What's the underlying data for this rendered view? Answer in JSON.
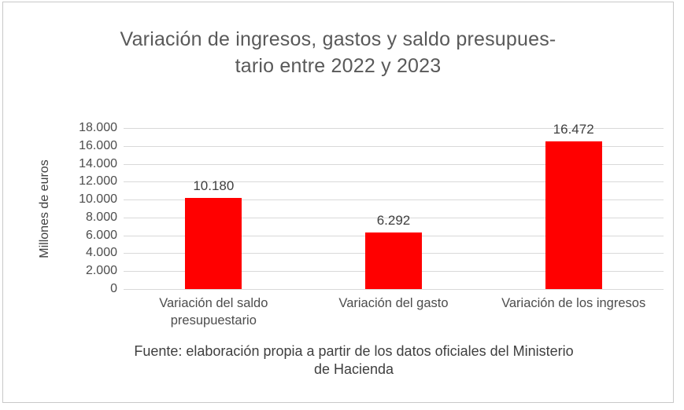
{
  "frame": {
    "border_color": "#c9c9c9",
    "background_color": "#ffffff"
  },
  "chart_data": {
    "type": "bar",
    "title": "Variación de ingresos, gastos y saldo presupuestario entre 2022 y 2023",
    "title_lines": [
      "Variación de ingresos, gastos y saldo presupues-",
      "tario entre 2022 y 2023"
    ],
    "ylabel": "Millones de euros",
    "xlabel": "",
    "categories": [
      "Variación del saldo presupuestario",
      "Variación del gasto",
      "Variación de los ingresos"
    ],
    "category_lines": [
      [
        "Variación del saldo",
        "presupuestario"
      ],
      [
        "Variación del gasto"
      ],
      [
        "Variación de los ingresos"
      ]
    ],
    "values": [
      10180,
      6292,
      16472
    ],
    "value_labels": [
      "10.180",
      "6.292",
      "16.472"
    ],
    "bar_color": "#ff0000",
    "ylim": [
      0,
      18000
    ],
    "ytick_step": 2000,
    "ytick_labels": [
      "0",
      "2.000",
      "4.000",
      "6.000",
      "8.000",
      "10.000",
      "12.000",
      "14.000",
      "16.000",
      "18.000"
    ],
    "grid": true,
    "gridline_color": "#d9d9d9",
    "legend": "none",
    "source": "Fuente: elaboración propia a partir de los datos oficiales del Ministerio de Hacienda",
    "source_lines": [
      "Fuente: elaboración propia a partir de los datos oficiales del Ministerio",
      "de Hacienda"
    ]
  }
}
